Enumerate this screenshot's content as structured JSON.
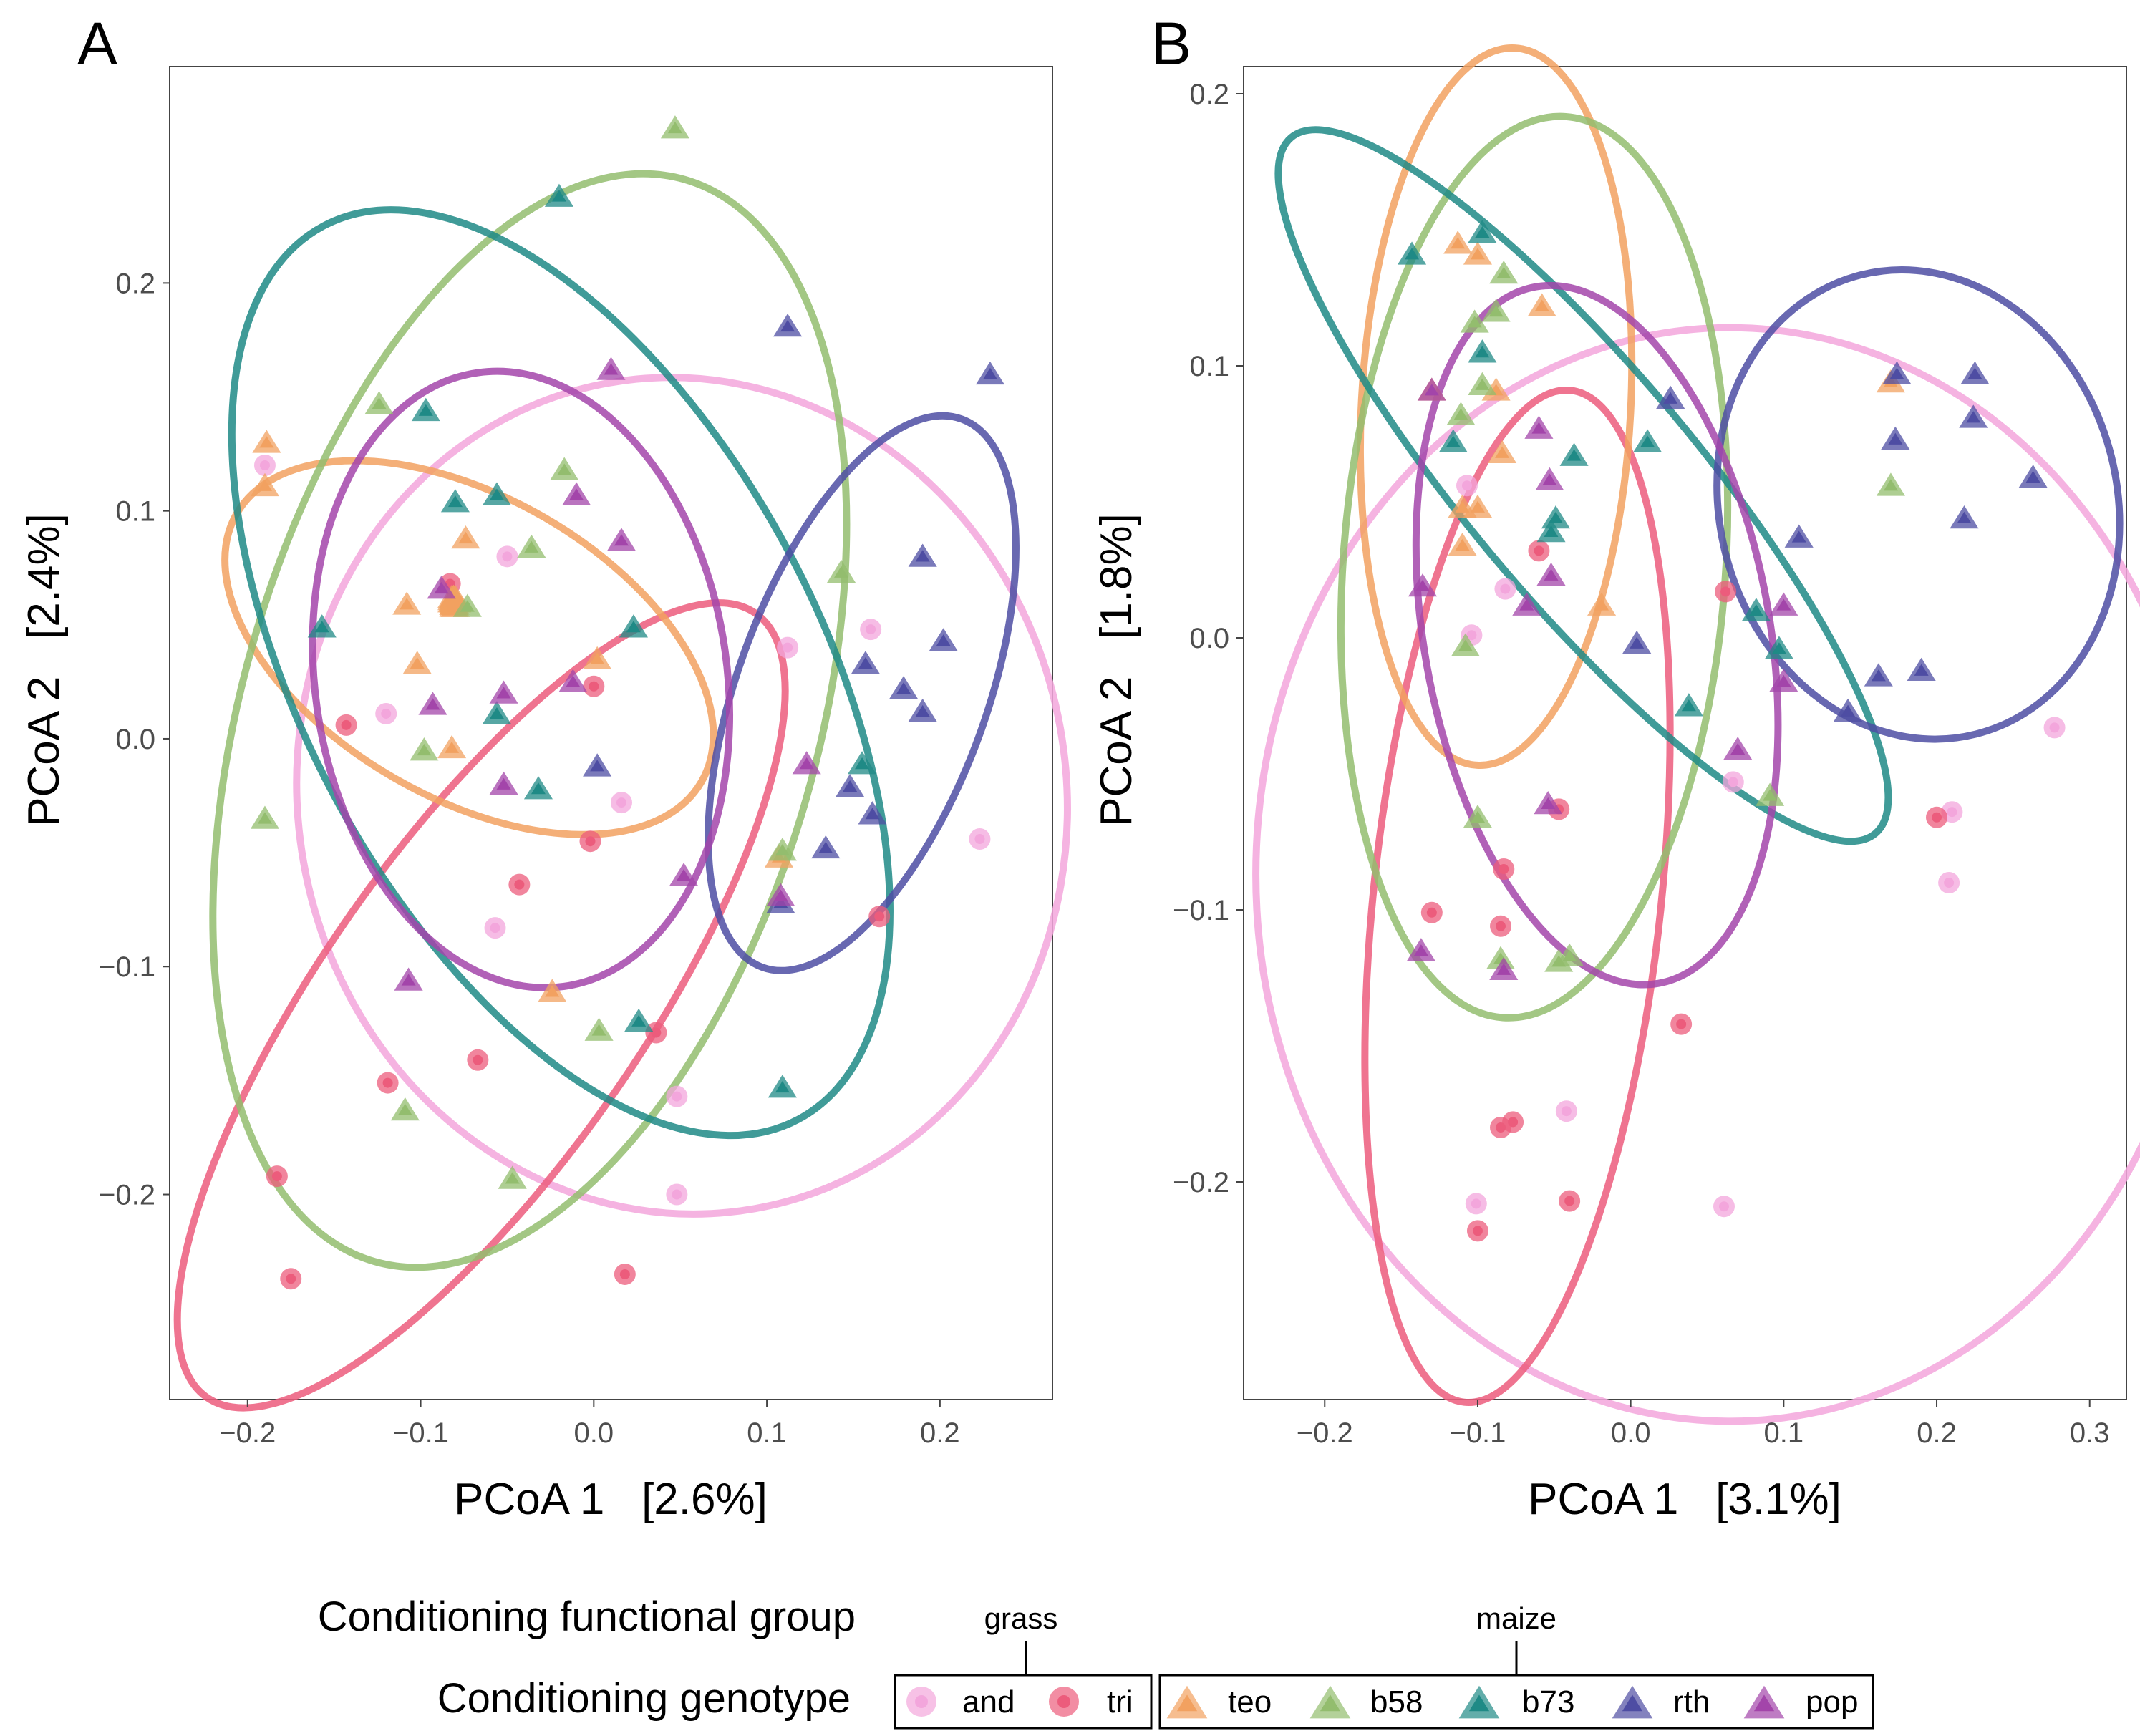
{
  "colors": {
    "and": "#F3A6DC",
    "tri": "#EC5C7C",
    "teo": "#F2A160",
    "b58": "#93BD6E",
    "b73": "#1F8A86",
    "rth": "#4E4DA3",
    "pop": "#A345AA"
  },
  "legend": {
    "group_title": "Conditioning functional group",
    "genotype_title": "Conditioning genotype",
    "grass_label": "grass",
    "maize_label": "maize",
    "grass_items": [
      {
        "key": "and",
        "label": "and",
        "shape": "circle"
      },
      {
        "key": "tri",
        "label": "tri",
        "shape": "circle"
      }
    ],
    "maize_items": [
      {
        "key": "teo",
        "label": "teo",
        "shape": "triangle"
      },
      {
        "key": "b58",
        "label": "b58",
        "shape": "triangle"
      },
      {
        "key": "b73",
        "label": "b73",
        "shape": "triangle"
      },
      {
        "key": "rth",
        "label": "rth",
        "shape": "triangle"
      },
      {
        "key": "pop",
        "label": "pop",
        "shape": "triangle"
      }
    ]
  },
  "chart_data": [
    {
      "type": "scatter",
      "panel_label": "A",
      "xlabel": "PCoA 1   [2.6%]",
      "ylabel": "PCoA 2   [2.4%]",
      "xlim": [
        -0.245,
        0.265
      ],
      "ylim": [
        -0.29,
        0.295
      ],
      "xticks": [
        -0.2,
        -0.1,
        0.0,
        0.1,
        0.2
      ],
      "xtick_labels": [
        "−0.2",
        "−0.1",
        "0.0",
        "0.1",
        "0.2"
      ],
      "yticks": [
        -0.2,
        -0.1,
        0.0,
        0.1,
        0.2
      ],
      "ytick_labels": [
        "−0.2",
        "−0.1",
        "0.0",
        "0.1",
        "0.2"
      ],
      "grid": false,
      "series": [
        {
          "name": "and",
          "points": [
            [
              -0.19,
              0.12
            ],
            [
              -0.05,
              0.08
            ],
            [
              -0.12,
              0.011
            ],
            [
              0.016,
              -0.028
            ],
            [
              -0.057,
              -0.083
            ],
            [
              0.112,
              0.04
            ],
            [
              0.16,
              0.048
            ],
            [
              0.223,
              -0.044
            ],
            [
              0.048,
              -0.157
            ],
            [
              0.048,
              -0.2
            ]
          ],
          "ellipse": {
            "cx": 0.051,
            "cy": -0.025,
            "rx": 0.222,
            "ry": 0.184,
            "angle": -10
          }
        },
        {
          "name": "tri",
          "points": [
            [
              -0.083,
              0.068
            ],
            [
              -0.143,
              0.006
            ],
            [
              0.0,
              0.023
            ],
            [
              -0.002,
              -0.045
            ],
            [
              -0.043,
              -0.064
            ],
            [
              -0.067,
              -0.141
            ],
            [
              -0.119,
              -0.151
            ],
            [
              -0.183,
              -0.192
            ],
            [
              -0.175,
              -0.237
            ],
            [
              0.036,
              -0.129
            ],
            [
              0.165,
              -0.078
            ],
            [
              0.018,
              -0.235
            ]
          ],
          "ellipse": {
            "cx": -0.065,
            "cy": -0.117,
            "rx": 0.092,
            "ry": 0.21,
            "angle": 35
          }
        },
        {
          "name": "teo",
          "points": [
            [
              -0.189,
              0.13
            ],
            [
              -0.19,
              0.111
            ],
            [
              -0.074,
              0.088
            ],
            [
              -0.108,
              0.059
            ],
            [
              -0.081,
              0.062
            ],
            [
              -0.082,
              0.06
            ],
            [
              -0.08,
              0.061
            ],
            [
              -0.08,
              0.059
            ],
            [
              -0.081,
              0.062
            ],
            [
              -0.079,
              0.06
            ],
            [
              -0.081,
              0.058
            ],
            [
              -0.082,
              0.061
            ],
            [
              -0.08,
              0.062
            ],
            [
              -0.081,
              0.059
            ],
            [
              -0.081,
              0.061
            ],
            [
              -0.08,
              0.06
            ],
            [
              -0.08,
              0.058
            ],
            [
              -0.081,
              0.06
            ],
            [
              -0.082,
              0.062
            ],
            [
              -0.081,
              0.059
            ],
            [
              -0.081,
              0.059
            ],
            [
              -0.08,
              0.061
            ],
            [
              -0.081,
              0.06
            ],
            [
              -0.081,
              0.06
            ],
            [
              -0.102,
              0.033
            ],
            [
              -0.082,
              -0.004
            ],
            [
              0.002,
              0.035
            ],
            [
              0.107,
              -0.052
            ],
            [
              -0.024,
              -0.111
            ]
          ],
          "ellipse": {
            "cx": -0.072,
            "cy": 0.04,
            "rx": 0.155,
            "ry": 0.066,
            "angle": 30
          }
        },
        {
          "name": "b58",
          "points": [
            [
              0.047,
              0.268
            ],
            [
              -0.124,
              0.147
            ],
            [
              -0.017,
              0.118
            ],
            [
              -0.036,
              0.084
            ],
            [
              -0.073,
              0.058
            ],
            [
              -0.098,
              -0.005
            ],
            [
              -0.19,
              -0.035
            ],
            [
              -0.109,
              -0.163
            ],
            [
              -0.047,
              -0.193
            ],
            [
              0.003,
              -0.128
            ],
            [
              0.143,
              0.073
            ],
            [
              0.109,
              -0.049
            ]
          ],
          "ellipse": {
            "cx": -0.037,
            "cy": 0.008,
            "rx": 0.166,
            "ry": 0.247,
            "angle": 16
          }
        },
        {
          "name": "b73",
          "points": [
            [
              -0.02,
              0.238
            ],
            [
              -0.097,
              0.144
            ],
            [
              -0.056,
              0.107
            ],
            [
              -0.08,
              0.104
            ],
            [
              -0.157,
              0.049
            ],
            [
              -0.056,
              0.011
            ],
            [
              -0.032,
              -0.022
            ],
            [
              0.023,
              0.049
            ],
            [
              0.109,
              -0.153
            ],
            [
              0.155,
              -0.011
            ],
            [
              0.026,
              -0.124
            ]
          ],
          "ellipse": {
            "cx": -0.019,
            "cy": 0.029,
            "rx": 0.149,
            "ry": 0.222,
            "angle": -28
          }
        },
        {
          "name": "rth",
          "points": [
            [
              0.112,
              0.181
            ],
            [
              0.229,
              0.16
            ],
            [
              0.19,
              0.08
            ],
            [
              0.202,
              0.043
            ],
            [
              0.157,
              0.033
            ],
            [
              0.179,
              0.022
            ],
            [
              0.19,
              0.012
            ],
            [
              0.148,
              -0.021
            ],
            [
              0.161,
              -0.033
            ],
            [
              0.134,
              -0.048
            ],
            [
              0.108,
              -0.072
            ],
            [
              0.002,
              -0.012
            ]
          ],
          "ellipse": {
            "cx": 0.155,
            "cy": 0.02,
            "rx": 0.072,
            "ry": 0.128,
            "angle": 20
          }
        },
        {
          "name": "pop",
          "points": [
            [
              0.01,
              0.162
            ],
            [
              -0.01,
              0.107
            ],
            [
              0.016,
              0.087
            ],
            [
              -0.088,
              0.066
            ],
            [
              -0.052,
              0.02
            ],
            [
              -0.012,
              0.025
            ],
            [
              -0.093,
              0.015
            ],
            [
              -0.052,
              -0.02
            ],
            [
              0.052,
              -0.06
            ],
            [
              0.123,
              -0.011
            ],
            [
              0.108,
              -0.069
            ],
            [
              -0.107,
              -0.106
            ]
          ],
          "ellipse": {
            "cx": -0.042,
            "cy": 0.026,
            "rx": 0.119,
            "ry": 0.136,
            "angle": -8
          }
        }
      ]
    },
    {
      "type": "scatter",
      "panel_label": "B",
      "xlabel": "PCoA 1   [3.1%]",
      "ylabel": "PCoA 2   [1.8%]",
      "xlim": [
        -0.253,
        0.324
      ],
      "ylim": [
        -0.28,
        0.21
      ],
      "xticks": [
        -0.2,
        -0.1,
        0.0,
        0.1,
        0.2,
        0.3
      ],
      "xtick_labels": [
        "−0.2",
        "−0.1",
        "0.0",
        "0.1",
        "0.2",
        "0.3"
      ],
      "yticks": [
        -0.2,
        -0.1,
        0.0,
        0.1,
        0.2
      ],
      "yticks_note": "",
      "ytick_labels": [
        "−0.2",
        "−0.1",
        "0.0",
        "0.1",
        "0.2"
      ],
      "grid": false,
      "series": [
        {
          "name": "and",
          "points": [
            [
              -0.107,
              0.056
            ],
            [
              -0.082,
              0.018
            ],
            [
              -0.104,
              0.001
            ],
            [
              0.067,
              -0.053
            ],
            [
              0.21,
              -0.064
            ],
            [
              0.208,
              -0.09
            ],
            [
              0.277,
              -0.033
            ],
            [
              -0.042,
              -0.174
            ],
            [
              0.061,
              -0.209
            ],
            [
              -0.101,
              -0.208
            ]
          ],
          "ellipse": {
            "cx": 0.065,
            "cy": -0.087,
            "rx": 0.31,
            "ry": 0.201,
            "angle": 0
          }
        },
        {
          "name": "tri",
          "points": [
            [
              -0.06,
              0.032
            ],
            [
              0.062,
              0.017
            ],
            [
              -0.047,
              -0.063
            ],
            [
              -0.083,
              -0.085
            ],
            [
              -0.13,
              -0.101
            ],
            [
              -0.085,
              -0.106
            ],
            [
              0.033,
              -0.142
            ],
            [
              -0.077,
              -0.178
            ],
            [
              -0.085,
              -0.18
            ],
            [
              -0.04,
              -0.207
            ],
            [
              -0.1,
              -0.218
            ],
            [
              0.2,
              -0.066
            ]
          ],
          "ellipse": {
            "cx": -0.074,
            "cy": -0.095,
            "rx": 0.094,
            "ry": 0.187,
            "angle": 6
          }
        },
        {
          "name": "teo",
          "points": [
            [
              -0.113,
              0.145
            ],
            [
              -0.1,
              0.141
            ],
            [
              -0.058,
              0.122
            ],
            [
              -0.13,
              0.091
            ],
            [
              -0.088,
              0.091
            ],
            [
              -0.084,
              0.068
            ],
            [
              -0.11,
              0.048
            ],
            [
              -0.1,
              0.048
            ],
            [
              -0.11,
              0.034
            ],
            [
              -0.019,
              0.012
            ],
            [
              0.17,
              0.094
            ]
          ],
          "ellipse": {
            "cx": -0.088,
            "cy": 0.085,
            "rx": 0.088,
            "ry": 0.132,
            "angle": 3
          }
        },
        {
          "name": "b58",
          "points": [
            [
              -0.083,
              0.134
            ],
            [
              -0.102,
              0.116
            ],
            [
              -0.088,
              0.12
            ],
            [
              -0.097,
              0.093
            ],
            [
              -0.111,
              0.082
            ],
            [
              -0.108,
              -0.003
            ],
            [
              0.17,
              0.056
            ],
            [
              -0.1,
              -0.066
            ],
            [
              -0.047,
              -0.119
            ],
            [
              -0.04,
              -0.117
            ],
            [
              0.091,
              -0.058
            ],
            [
              -0.085,
              -0.118
            ]
          ],
          "ellipse": {
            "cx": -0.063,
            "cy": 0.026,
            "rx": 0.125,
            "ry": 0.166,
            "angle": 4
          }
        },
        {
          "name": "b73",
          "points": [
            [
              -0.143,
              0.141
            ],
            [
              -0.097,
              0.149
            ],
            [
              -0.097,
              0.105
            ],
            [
              -0.116,
              0.072
            ],
            [
              -0.037,
              0.067
            ],
            [
              0.011,
              0.072
            ],
            [
              -0.052,
              0.039
            ],
            [
              -0.049,
              0.044
            ],
            [
              0.082,
              0.01
            ],
            [
              0.097,
              -0.004
            ],
            [
              0.038,
              -0.025
            ]
          ],
          "ellipse": {
            "cx": -0.031,
            "cy": 0.056,
            "rx": 0.075,
            "ry": 0.167,
            "angle": -40
          }
        },
        {
          "name": "rth",
          "points": [
            [
              0.174,
              0.097
            ],
            [
              0.225,
              0.097
            ],
            [
              0.173,
              0.073
            ],
            [
              0.224,
              0.081
            ],
            [
              0.263,
              0.059
            ],
            [
              0.218,
              0.044
            ],
            [
              0.11,
              0.037
            ],
            [
              0.026,
              0.088
            ],
            [
              0.004,
              -0.002
            ],
            [
              0.162,
              -0.014
            ],
            [
              0.19,
              -0.012
            ],
            [
              0.142,
              -0.027
            ]
          ],
          "ellipse": {
            "cx": 0.188,
            "cy": 0.049,
            "rx": 0.13,
            "ry": 0.087,
            "angle": -14
          }
        },
        {
          "name": "pop",
          "points": [
            [
              -0.13,
              0.091
            ],
            [
              -0.06,
              0.077
            ],
            [
              -0.053,
              0.058
            ],
            [
              -0.136,
              0.019
            ],
            [
              -0.052,
              0.023
            ],
            [
              -0.068,
              0.012
            ],
            [
              0.1,
              0.012
            ],
            [
              0.1,
              -0.016
            ],
            [
              0.07,
              -0.041
            ],
            [
              -0.054,
              -0.061
            ],
            [
              -0.137,
              -0.115
            ],
            [
              -0.083,
              -0.122
            ]
          ],
          "ellipse": {
            "cx": -0.022,
            "cy": 0.001,
            "rx": 0.113,
            "ry": 0.13,
            "angle": -10
          }
        }
      ]
    }
  ]
}
